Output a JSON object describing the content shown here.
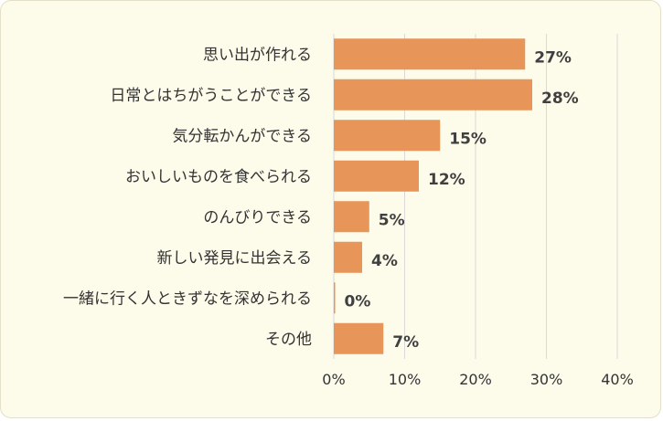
{
  "chart_data": {
    "type": "bar",
    "orientation": "horizontal",
    "categories": [
      "思い出が作れる",
      "日常とはちがうことができる",
      "気分転かんができる",
      "おいしいものを食べられる",
      "のんびりできる",
      "新しい発見に出会える",
      "一緒に行く人ときずなを深められる",
      "その他"
    ],
    "values": [
      27,
      28,
      15,
      12,
      5,
      4,
      0,
      7
    ],
    "data_labels": [
      "27%",
      "28%",
      "15%",
      "12%",
      "5%",
      "4%",
      "0%",
      "7%"
    ],
    "x_ticks": [
      "0%",
      "10%",
      "20%",
      "30%",
      "40%"
    ],
    "xlim": [
      0,
      40
    ],
    "grid": true,
    "legend": "none",
    "bar_color": "#e8955a",
    "grid_color": "#d9d9d9"
  }
}
